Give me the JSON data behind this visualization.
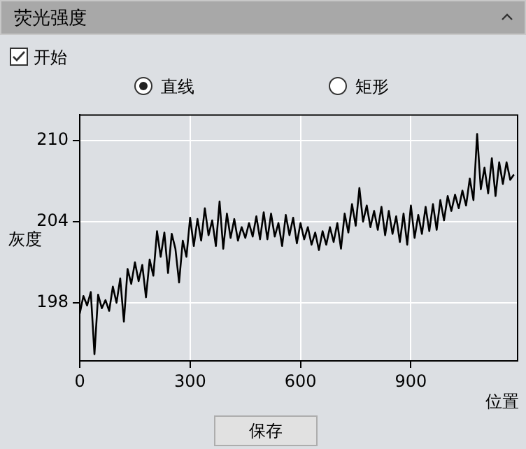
{
  "chart_data": {
    "type": "line",
    "title": "荧光强度",
    "xlabel": "位置",
    "ylabel": "灰度",
    "annotations": [
      "开始",
      "直线",
      "矩形",
      "保存"
    ],
    "x": [
      0,
      10,
      20,
      30,
      40,
      50,
      60,
      70,
      80,
      90,
      100,
      110,
      120,
      130,
      140,
      150,
      160,
      170,
      180,
      190,
      200,
      210,
      220,
      230,
      240,
      250,
      260,
      270,
      280,
      290,
      300,
      310,
      320,
      330,
      340,
      350,
      360,
      370,
      380,
      390,
      400,
      410,
      420,
      430,
      440,
      450,
      460,
      470,
      480,
      490,
      500,
      510,
      520,
      530,
      540,
      550,
      560,
      570,
      580,
      590,
      600,
      610,
      620,
      630,
      640,
      650,
      660,
      670,
      680,
      690,
      700,
      710,
      720,
      730,
      740,
      750,
      760,
      770,
      780,
      790,
      800,
      810,
      820,
      830,
      840,
      850,
      860,
      870,
      880,
      890,
      900,
      910,
      920,
      930,
      940,
      950,
      960,
      970,
      980,
      990,
      1000,
      1010,
      1020,
      1030,
      1040,
      1050,
      1060,
      1070,
      1080,
      1090,
      1100,
      1110,
      1120,
      1130,
      1140,
      1150,
      1160,
      1170,
      1180
    ],
    "series": [
      {
        "color": "#000000",
        "values": [
          197.2,
          198.5,
          197.8,
          198.8,
          194.2,
          198.6,
          197.6,
          198.2,
          197.4,
          199.2,
          198.0,
          199.8,
          196.6,
          200.5,
          199.4,
          201.0,
          199.6,
          200.8,
          198.4,
          201.2,
          200.0,
          203.3,
          201.4,
          203.2,
          200.2,
          203.1,
          202.0,
          199.5,
          202.6,
          201.4,
          204.3,
          202.2,
          204.2,
          202.6,
          205.0,
          203.0,
          204.1,
          202.2,
          205.5,
          202.0,
          204.6,
          202.8,
          204.2,
          202.6,
          203.6,
          202.8,
          203.9,
          202.9,
          204.4,
          202.7,
          204.7,
          202.7,
          204.6,
          202.9,
          203.9,
          202.2,
          204.5,
          203.0,
          204.3,
          202.4,
          203.9,
          202.7,
          203.6,
          202.3,
          203.2,
          201.9,
          203.3,
          202.3,
          203.6,
          202.5,
          203.9,
          202.0,
          204.6,
          203.2,
          205.3,
          203.7,
          206.5,
          204.0,
          205.2,
          203.6,
          204.8,
          203.4,
          205.1,
          203.0,
          204.8,
          203.1,
          204.4,
          202.5,
          204.6,
          202.3,
          205.2,
          202.8,
          204.5,
          203.1,
          205.1,
          203.3,
          205.3,
          203.4,
          205.6,
          204.1,
          205.9,
          204.8,
          206.0,
          205.0,
          206.3,
          205.2,
          207.2,
          205.6,
          210.5,
          206.4,
          208.0,
          206.1,
          208.7,
          205.9,
          208.4,
          206.8,
          208.4,
          207.1,
          207.5
        ]
      }
    ],
    "xlim": [
      0,
      1190
    ],
    "ylim": [
      193.7,
      211.9
    ],
    "xticks": [
      0,
      300,
      600,
      900
    ],
    "yticks": [
      198,
      204,
      210
    ],
    "grid": true,
    "legend": false,
    "marker": "none",
    "line_style": "solid"
  }
}
